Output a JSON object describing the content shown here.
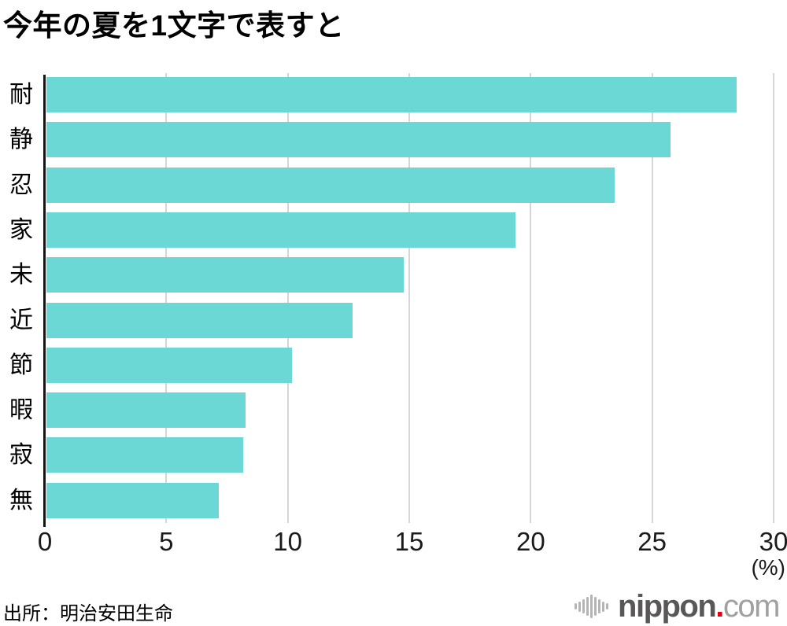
{
  "title": "今年の夏を1文字で表すと",
  "source": "出所：明治安田生命",
  "axis_unit": "(%)",
  "logo": {
    "icon": "soundwave-icon",
    "main": "nippon",
    "dot": ".",
    "suffix": "com"
  },
  "colors": {
    "bar": "#6bd8d5",
    "grid": "#d6d6d6",
    "axis": "#141414",
    "title_text": "#000000",
    "logo_main": "#595757",
    "logo_dot": "#e60012",
    "logo_suffix": "#9fa0a0",
    "logo_icon": "#b3b4b5"
  },
  "chart_data": {
    "type": "bar",
    "orientation": "horizontal",
    "title": "今年の夏を1文字で表すと",
    "categories": [
      "耐",
      "静",
      "忍",
      "家",
      "未",
      "近",
      "節",
      "暇",
      "寂",
      "無"
    ],
    "values": [
      28.4,
      25.7,
      23.4,
      19.3,
      14.7,
      12.6,
      10.1,
      8.2,
      8.1,
      7.1
    ],
    "xlabel": "(%)",
    "ylabel": "",
    "xlim": [
      0,
      30
    ],
    "xticks": [
      0,
      5,
      10,
      15,
      20,
      25,
      30
    ],
    "grid": true,
    "legend": false
  }
}
